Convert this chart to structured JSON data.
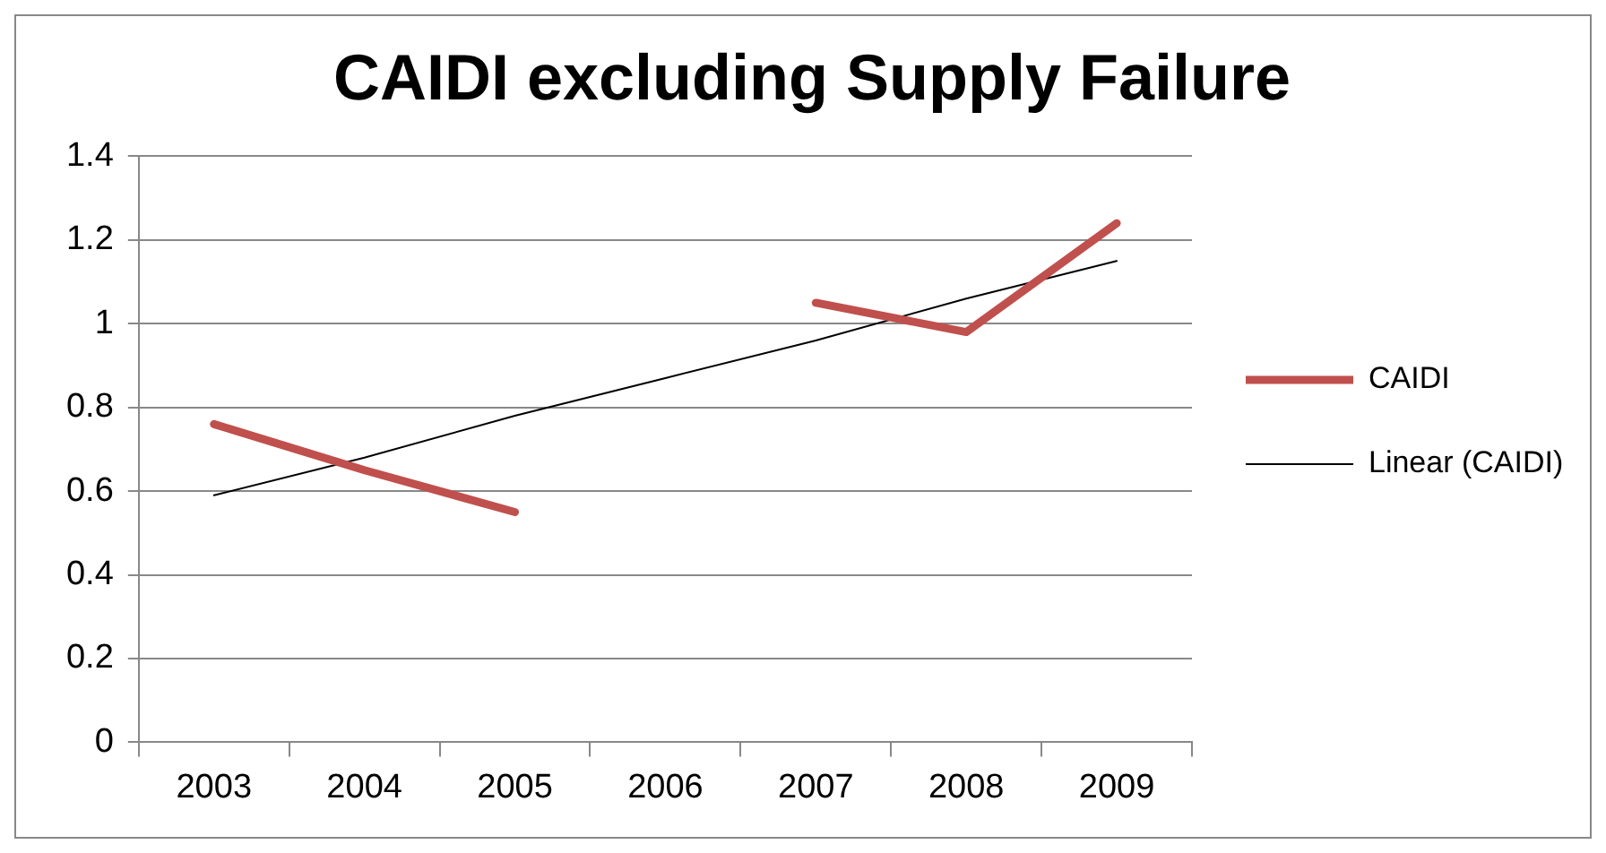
{
  "chart_data": {
    "type": "line",
    "title": "CAIDI excluding Supply Failure",
    "categories": [
      "2003",
      "2004",
      "2005",
      "2006",
      "2007",
      "2008",
      "2009"
    ],
    "series": [
      {
        "name": "CAIDI",
        "color": "#c0504d",
        "values": [
          0.76,
          0.65,
          0.55,
          null,
          1.05,
          0.98,
          1.24
        ]
      },
      {
        "name": "Linear (CAIDI)",
        "type": "line",
        "color": "#000000",
        "values": [
          0.59,
          0.68,
          0.78,
          0.87,
          0.96,
          1.06,
          1.15
        ]
      }
    ],
    "ylim": [
      0,
      1.4
    ],
    "yticks": [
      0,
      0.2,
      0.4,
      0.6,
      0.8,
      1,
      1.2,
      1.4
    ],
    "grid": "y",
    "legend": "right",
    "marker": "none"
  }
}
